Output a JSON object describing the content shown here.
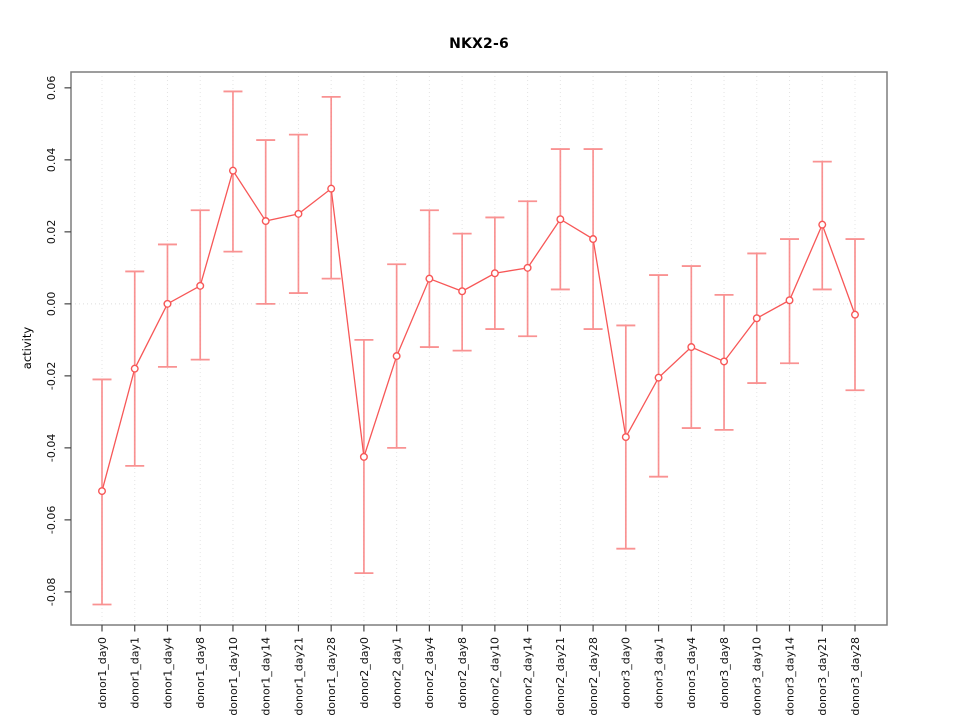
{
  "chart_data": {
    "type": "line",
    "title": "NKX2-6",
    "xlabel": "",
    "ylabel": "activity",
    "legend": "none",
    "grid": "vertical dotted gridline at every category; horizontal dotted line at y=0",
    "categories": [
      "donor1_day0",
      "donor1_day1",
      "donor1_day4",
      "donor1_day8",
      "donor1_day10",
      "donor1_day14",
      "donor1_day21",
      "donor1_day28",
      "donor2_day0",
      "donor2_day1",
      "donor2_day4",
      "donor2_day8",
      "donor2_day10",
      "donor2_day14",
      "donor2_day21",
      "donor2_day28",
      "donor3_day0",
      "donor3_day1",
      "donor3_day4",
      "donor3_day8",
      "donor3_day10",
      "donor3_day14",
      "donor3_day21",
      "donor3_day28"
    ],
    "series": [
      {
        "name": "activity",
        "marker": "open-circle",
        "values": [
          -0.052,
          -0.018,
          0.0,
          0.005,
          0.037,
          0.023,
          0.025,
          0.032,
          -0.0425,
          -0.0145,
          0.007,
          0.0035,
          0.0085,
          0.01,
          0.0235,
          0.018,
          -0.037,
          -0.0205,
          -0.012,
          -0.016,
          -0.004,
          0.001,
          0.022,
          -0.003
        ],
        "error_upper": [
          -0.021,
          0.009,
          0.0165,
          0.026,
          0.059,
          0.0455,
          0.047,
          0.0575,
          -0.01,
          0.011,
          0.026,
          0.0195,
          0.024,
          0.0285,
          0.043,
          0.043,
          -0.006,
          0.008,
          0.0105,
          0.0025,
          0.014,
          0.018,
          0.0395,
          0.018
        ],
        "error_lower": [
          -0.0835,
          -0.045,
          -0.0175,
          -0.0155,
          0.0145,
          0.0,
          0.003,
          0.007,
          -0.0748,
          -0.04,
          -0.012,
          -0.013,
          -0.007,
          -0.009,
          0.004,
          -0.007,
          -0.068,
          -0.048,
          -0.0345,
          -0.035,
          -0.022,
          -0.0165,
          0.004,
          -0.024
        ]
      }
    ],
    "ytick_labels": [
      "0.06",
      "0.04",
      "0.02",
      "0.00",
      "-0.02",
      "-0.04",
      "-0.06",
      "-0.08"
    ],
    "ylim": [
      -0.0892,
      0.0644
    ],
    "colors": {
      "line": "#f75757",
      "point": "#f75757",
      "error_bar": "#f98080",
      "gridline": "#e4e4e4",
      "zero_line": "#dcdcdc",
      "axis_box": "#7d7d7d",
      "tick": "#444444",
      "label_text": "#111111"
    }
  }
}
